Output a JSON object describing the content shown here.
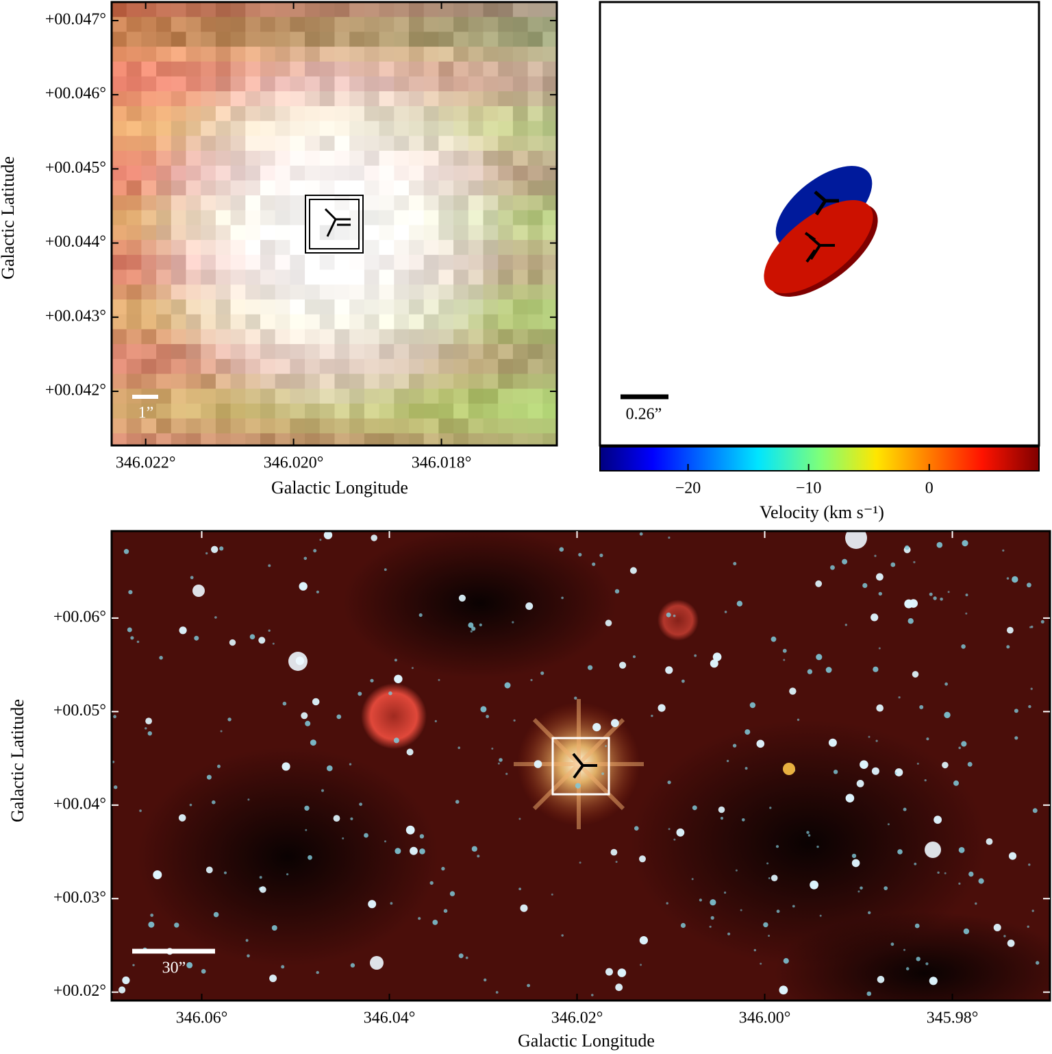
{
  "chart_data": [
    {
      "type": "image",
      "x_label": "Galactic Longitude",
      "y_label": "Galactic Latitude",
      "scale_label": "1”",
      "xlim": [
        346.02246,
        346.01644
      ],
      "ylim": [
        0.04127,
        0.04725
      ],
      "xticks": [
        {
          "value": 346.022,
          "label": "346.022°"
        },
        {
          "value": 346.02,
          "label": "346.020°"
        },
        {
          "value": 346.018,
          "label": "346.018°"
        }
      ],
      "yticks": [
        {
          "value": 0.042,
          "label": "+00.042°"
        },
        {
          "value": 0.043,
          "label": "+00.043°"
        },
        {
          "value": 0.044,
          "label": "+00.044°"
        },
        {
          "value": 0.045,
          "label": "+00.045°"
        },
        {
          "value": 0.046,
          "label": "+00.046°"
        },
        {
          "value": 0.047,
          "label": "+00.047°"
        }
      ]
    },
    {
      "type": "colorbar",
      "x_label": "Velocity (km s⁻¹)",
      "scale_label": "0.26”",
      "xlim": [
        -27.3,
        9.1
      ],
      "xticks": [
        {
          "value": -20,
          "label": "−20"
        },
        {
          "value": -10,
          "label": "−10"
        },
        0
      ]
    },
    {
      "type": "image",
      "x_label": "Galactic Longitude",
      "y_label": "Galactic Latitude",
      "scale_label": "30”",
      "xlim": [
        346.0696,
        345.9696
      ],
      "ylim": [
        0.0191,
        0.0693
      ],
      "xticks": [
        {
          "value": 346.06,
          "label": "346.06°"
        },
        {
          "value": 346.04,
          "label": "346.04°"
        },
        {
          "value": 346.02,
          "label": "346.02°"
        },
        {
          "value": 346.0,
          "label": "346.00°"
        },
        {
          "value": 345.98,
          "label": "345.98°"
        }
      ],
      "yticks": [
        {
          "value": 0.02,
          "label": "+00.02°"
        },
        {
          "value": 0.03,
          "label": "+00.03°"
        },
        {
          "value": 0.04,
          "label": "+00.04°"
        },
        {
          "value": 0.05,
          "label": "+00.05°"
        },
        {
          "value": 0.06,
          "label": "+00.06°"
        }
      ]
    }
  ]
}
